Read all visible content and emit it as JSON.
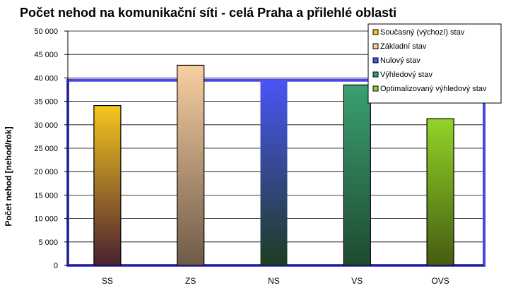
{
  "chart_data": {
    "type": "bar",
    "title": "Počet nehod na komunikační síti - celá Praha a přilehlé oblasti",
    "xlabel": "",
    "ylabel": "Počet nehod  [nehod/rok]",
    "ylim": [
      0,
      50000
    ],
    "yticks": [
      0,
      5000,
      10000,
      15000,
      20000,
      25000,
      30000,
      35000,
      40000,
      45000,
      50000
    ],
    "ytick_labels": [
      "0",
      "5 000",
      "10 000",
      "15 000",
      "20 000",
      "25 000",
      "30 000",
      "35 000",
      "40 000",
      "45 000",
      "50 000"
    ],
    "categories": [
      "SS",
      "ZS",
      "NS",
      "VS",
      "OVS"
    ],
    "values": [
      34100,
      42700,
      39500,
      38500,
      31300
    ],
    "series_names": [
      "Současný (výchozí) stav",
      "Základní stav",
      "Nulový stav",
      "Výhledový stav",
      "Optimalizovaný výhledový stav"
    ],
    "colors": {
      "SS": [
        "#f4c61e",
        "#4a2030"
      ],
      "ZS": [
        "#f8cfa2",
        "#6e5a48"
      ],
      "NS": [
        "#4a55f5",
        "#1e3c22"
      ],
      "VS": [
        "#3aa070",
        "#1e4a30"
      ],
      "OVS": [
        "#93d428",
        "#445c10"
      ],
      "reference_frame": "#4747e6"
    },
    "grid": true,
    "legend_position": "top-right"
  }
}
